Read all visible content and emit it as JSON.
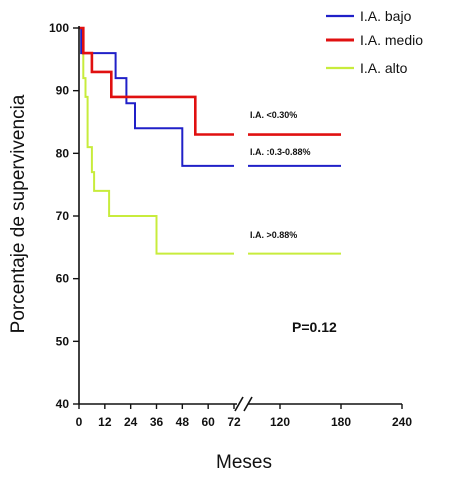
{
  "chart_data": {
    "type": "line",
    "step": true,
    "title": "",
    "xlabel": "Meses",
    "ylabel": "Porcentaje de supervivencia",
    "ylim": [
      40,
      100
    ],
    "yticks": [
      "40",
      "50",
      "60",
      "70",
      "80",
      "90",
      "100"
    ],
    "x_segments": [
      {
        "range": [
          0,
          72
        ],
        "ticks": [
          "0",
          "12",
          "24",
          "36",
          "48",
          "60",
          "72"
        ]
      },
      {
        "range": [
          72,
          240
        ],
        "ticks": [
          "120",
          "180",
          "240"
        ]
      }
    ],
    "axis_break_at": 72,
    "legend": {
      "position": "top-right"
    },
    "series": [
      {
        "name": "I.A. bajo",
        "color": "#2020c8",
        "points": [
          [
            0,
            100
          ],
          [
            1,
            100
          ],
          [
            1,
            96
          ],
          [
            17,
            96
          ],
          [
            17,
            92
          ],
          [
            22,
            92
          ],
          [
            22,
            88
          ],
          [
            26,
            88
          ],
          [
            26,
            84
          ],
          [
            48,
            84
          ],
          [
            48,
            78
          ],
          [
            72,
            78
          ]
        ],
        "continuation": [
          [
            120,
            78
          ],
          [
            180,
            78
          ]
        ],
        "label": "I.A. :0.3-0.88%",
        "label_value": 78
      },
      {
        "name": "I.A. medio",
        "color": "#e01010",
        "points": [
          [
            0,
            100
          ],
          [
            2,
            100
          ],
          [
            2,
            96
          ],
          [
            6,
            96
          ],
          [
            6,
            93
          ],
          [
            15,
            93
          ],
          [
            15,
            89
          ],
          [
            54,
            89
          ],
          [
            54,
            83
          ],
          [
            72,
            83
          ]
        ],
        "continuation": [
          [
            120,
            83
          ],
          [
            180,
            83
          ]
        ],
        "label": "I.A. <0.30%",
        "label_value": 83
      },
      {
        "name": "I.A. alto",
        "color": "#c8ec3c",
        "points": [
          [
            0,
            100
          ],
          [
            1,
            100
          ],
          [
            1,
            96
          ],
          [
            2,
            96
          ],
          [
            2,
            92
          ],
          [
            3,
            92
          ],
          [
            3,
            89
          ],
          [
            4,
            89
          ],
          [
            4,
            81
          ],
          [
            6,
            81
          ],
          [
            6,
            77
          ],
          [
            7,
            77
          ],
          [
            7,
            74
          ],
          [
            14,
            74
          ],
          [
            14,
            70
          ],
          [
            36,
            70
          ],
          [
            36,
            64
          ],
          [
            72,
            64
          ]
        ],
        "continuation": [
          [
            120,
            64
          ],
          [
            180,
            64
          ]
        ],
        "label": "I.A.  >0.88%",
        "label_value": 64
      }
    ],
    "annotations": [
      {
        "text": "P=0.12"
      }
    ]
  }
}
